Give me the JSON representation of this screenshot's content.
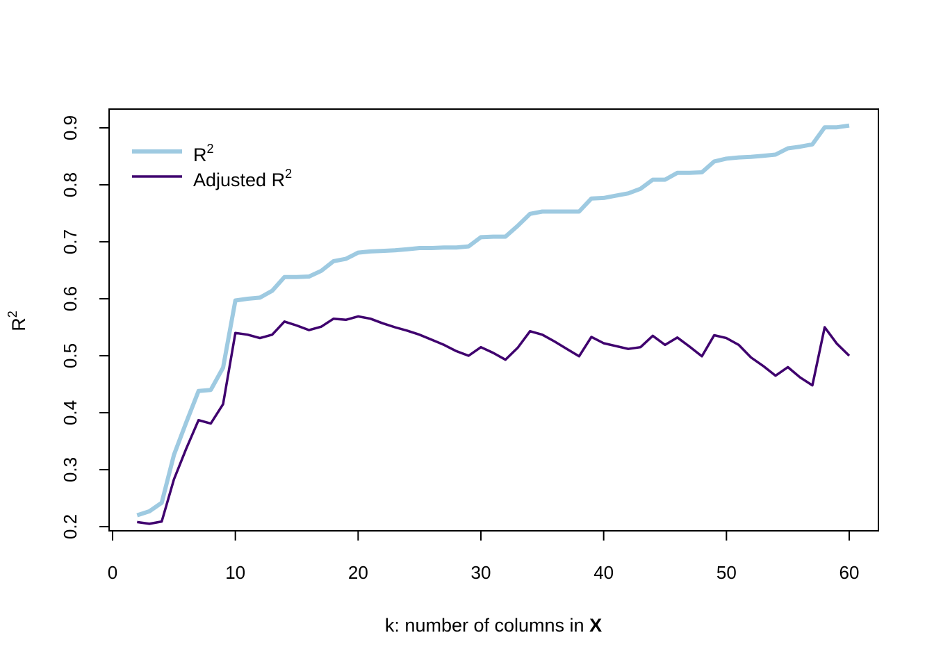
{
  "chart_data": {
    "type": "line",
    "xlabel_prefix": "k: number of columns in ",
    "xlabel_bold": "X",
    "ylabel_base": "R",
    "ylabel_sup": "2",
    "xlim": [
      0,
      60
    ],
    "ylim": [
      0.2,
      0.9
    ],
    "x_ticks": [
      0,
      10,
      20,
      30,
      40,
      50,
      60
    ],
    "y_ticks": [
      0.2,
      0.3,
      0.4,
      0.5,
      0.6,
      0.7,
      0.8,
      0.9
    ],
    "x_tick_labels": [
      "0",
      "10",
      "20",
      "30",
      "40",
      "50",
      "60"
    ],
    "y_tick_labels": [
      "0.2",
      "0.3",
      "0.4",
      "0.5",
      "0.6",
      "0.7",
      "0.8",
      "0.9"
    ],
    "grid": false,
    "legend_position": "top-left",
    "x": [
      2,
      3,
      4,
      5,
      6,
      7,
      8,
      9,
      10,
      11,
      12,
      13,
      14,
      15,
      16,
      17,
      18,
      19,
      20,
      21,
      22,
      23,
      24,
      25,
      26,
      27,
      28,
      29,
      30,
      31,
      32,
      33,
      34,
      35,
      36,
      37,
      38,
      39,
      40,
      41,
      42,
      43,
      44,
      45,
      46,
      47,
      48,
      49,
      50,
      51,
      52,
      53,
      54,
      55,
      56,
      57,
      58,
      59,
      60
    ],
    "series": [
      {
        "name": "R",
        "name_sup": "2",
        "color": "#9ecae1",
        "line_style": "thick",
        "values": [
          0.22,
          0.227,
          0.242,
          0.326,
          0.383,
          0.438,
          0.44,
          0.479,
          0.597,
          0.6,
          0.602,
          0.614,
          0.638,
          0.638,
          0.639,
          0.649,
          0.666,
          0.67,
          0.681,
          0.683,
          0.684,
          0.685,
          0.687,
          0.689,
          0.689,
          0.69,
          0.69,
          0.692,
          0.708,
          0.709,
          0.709,
          0.728,
          0.749,
          0.753,
          0.753,
          0.753,
          0.753,
          0.776,
          0.777,
          0.781,
          0.785,
          0.793,
          0.809,
          0.809,
          0.821,
          0.821,
          0.822,
          0.841,
          0.846,
          0.848,
          0.849,
          0.851,
          0.853,
          0.864,
          0.867,
          0.871,
          0.901,
          0.901,
          0.904
        ]
      },
      {
        "name": "Adjusted R",
        "name_sup": "2",
        "color": "#3f006e",
        "line_style": "thin",
        "values": [
          0.208,
          0.205,
          0.209,
          0.283,
          0.337,
          0.387,
          0.381,
          0.415,
          0.54,
          0.537,
          0.531,
          0.537,
          0.56,
          0.553,
          0.545,
          0.551,
          0.565,
          0.563,
          0.569,
          0.565,
          0.557,
          0.55,
          0.544,
          0.537,
          0.528,
          0.519,
          0.508,
          0.5,
          0.515,
          0.505,
          0.493,
          0.514,
          0.543,
          0.537,
          0.525,
          0.512,
          0.499,
          0.533,
          0.522,
          0.517,
          0.512,
          0.515,
          0.535,
          0.519,
          0.532,
          0.516,
          0.499,
          0.536,
          0.531,
          0.519,
          0.497,
          0.482,
          0.465,
          0.48,
          0.462,
          0.448,
          0.55,
          0.521,
          0.5
        ]
      }
    ]
  }
}
